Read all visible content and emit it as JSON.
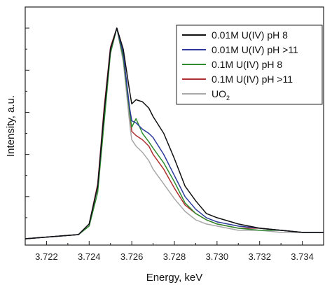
{
  "chart_data": {
    "type": "line",
    "title": "",
    "xlabel": "Energy, keV",
    "ylabel": "Intensity, a.u.",
    "xlim": [
      3.721,
      3.735
    ],
    "ylim": [
      -0.03,
      1.1
    ],
    "x_ticks": [
      "3.722",
      "3.724",
      "3.726",
      "3.728",
      "3.730",
      "3.732",
      "3.734"
    ],
    "grid": false,
    "legend_position": "top-right",
    "series": [
      {
        "name": "0.01M U(IV) pH 8",
        "color": "#111111",
        "x": [
          3.721,
          3.7235,
          3.724,
          3.7244,
          3.7247,
          3.725,
          3.7253,
          3.7256,
          3.7259,
          3.726,
          3.7262,
          3.7265,
          3.7268,
          3.727,
          3.7275,
          3.728,
          3.7285,
          3.729,
          3.7295,
          3.73,
          3.731,
          3.732,
          3.733,
          3.734,
          3.735
        ],
        "y": [
          0.0,
          0.02,
          0.07,
          0.25,
          0.6,
          0.9,
          1.0,
          0.9,
          0.7,
          0.64,
          0.66,
          0.65,
          0.62,
          0.58,
          0.5,
          0.38,
          0.25,
          0.18,
          0.12,
          0.1,
          0.07,
          0.05,
          0.04,
          0.03,
          0.03
        ]
      },
      {
        "name": "0.01M U(IV) pH >11",
        "color": "#2b3a9a",
        "x": [
          3.721,
          3.7235,
          3.724,
          3.7244,
          3.7247,
          3.725,
          3.7253,
          3.7256,
          3.7259,
          3.726,
          3.7262,
          3.7265,
          3.7268,
          3.727,
          3.7275,
          3.728,
          3.7285,
          3.729,
          3.7295,
          3.73,
          3.731,
          3.732,
          3.733,
          3.734,
          3.735
        ],
        "y": [
          0.0,
          0.02,
          0.07,
          0.25,
          0.6,
          0.9,
          1.0,
          0.88,
          0.62,
          0.56,
          0.55,
          0.52,
          0.5,
          0.48,
          0.4,
          0.3,
          0.2,
          0.14,
          0.1,
          0.08,
          0.06,
          0.05,
          0.04,
          0.03,
          0.03
        ]
      },
      {
        "name": "0.1M U(IV) pH 8",
        "color": "#2e8b2e",
        "x": [
          3.721,
          3.7235,
          3.724,
          3.7244,
          3.7247,
          3.725,
          3.7253,
          3.7256,
          3.7259,
          3.726,
          3.7262,
          3.7265,
          3.7268,
          3.727,
          3.7275,
          3.728,
          3.7285,
          3.729,
          3.7295,
          3.73,
          3.731,
          3.732,
          3.733,
          3.734,
          3.735
        ],
        "y": [
          0.0,
          0.02,
          0.06,
          0.22,
          0.55,
          0.88,
          1.0,
          0.86,
          0.6,
          0.53,
          0.57,
          0.5,
          0.46,
          0.43,
          0.36,
          0.27,
          0.17,
          0.12,
          0.09,
          0.07,
          0.05,
          0.04,
          0.04,
          0.03,
          0.03
        ]
      },
      {
        "name": "0.1M U(IV) pH >11",
        "color": "#b03030",
        "x": [
          3.721,
          3.7235,
          3.724,
          3.7244,
          3.7247,
          3.725,
          3.7253,
          3.7256,
          3.7259,
          3.726,
          3.7262,
          3.7265,
          3.7268,
          3.727,
          3.7275,
          3.728,
          3.7285,
          3.729,
          3.7295,
          3.73,
          3.731,
          3.732,
          3.733,
          3.734,
          3.735
        ],
        "y": [
          0.0,
          0.02,
          0.07,
          0.26,
          0.62,
          0.91,
          1.0,
          0.86,
          0.6,
          0.51,
          0.49,
          0.47,
          0.44,
          0.4,
          0.33,
          0.24,
          0.16,
          0.12,
          0.09,
          0.07,
          0.05,
          0.05,
          0.04,
          0.03,
          0.03
        ]
      },
      {
        "name": "UO",
        "name_subscript": "2",
        "color": "#a8a8a8",
        "x": [
          3.721,
          3.7235,
          3.724,
          3.7244,
          3.7247,
          3.725,
          3.7253,
          3.7256,
          3.7259,
          3.726,
          3.7262,
          3.7265,
          3.7268,
          3.727,
          3.7275,
          3.728,
          3.7285,
          3.729,
          3.7295,
          3.73,
          3.731,
          3.732,
          3.733,
          3.734,
          3.735
        ],
        "y": [
          0.0,
          0.02,
          0.07,
          0.25,
          0.6,
          0.9,
          1.0,
          0.84,
          0.55,
          0.47,
          0.44,
          0.41,
          0.37,
          0.33,
          0.26,
          0.19,
          0.13,
          0.09,
          0.07,
          0.06,
          0.04,
          0.04,
          0.03,
          0.03,
          0.03
        ]
      }
    ]
  }
}
